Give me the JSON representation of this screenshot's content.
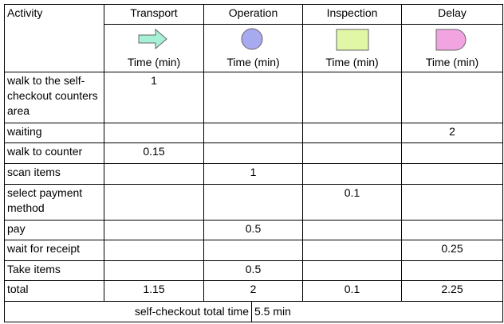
{
  "table": {
    "header": [
      "Activity",
      "Transport",
      "Operation",
      "Inspection",
      "Delay"
    ],
    "unit_labels": [
      "Time (min)",
      "Time (min)",
      "Time (min)",
      "Time (min)"
    ],
    "rows": [
      {
        "activity": "walk to the self-checkout counters area",
        "values": [
          1,
          null,
          null,
          null
        ]
      },
      {
        "activity": "waiting",
        "values": [
          null,
          null,
          null,
          2
        ]
      },
      {
        "activity": "walk to counter",
        "values": [
          0.15,
          null,
          null,
          null
        ]
      },
      {
        "activity": "scan items",
        "values": [
          null,
          1,
          null,
          null
        ]
      },
      {
        "activity": "select payment method",
        "values": [
          null,
          null,
          0.1,
          null
        ]
      },
      {
        "activity": "pay",
        "values": [
          null,
          0.5,
          null,
          null
        ]
      },
      {
        "activity": "wait for receipt",
        "values": [
          null,
          null,
          null,
          0.25
        ]
      },
      {
        "activity": "Take items",
        "values": [
          null,
          0.5,
          null,
          null
        ]
      },
      {
        "activity": "total",
        "values": [
          1.15,
          2,
          0.1,
          2.25
        ]
      }
    ],
    "footer": {
      "label": "self-checkout total time",
      "value": "5.5 min"
    }
  }
}
